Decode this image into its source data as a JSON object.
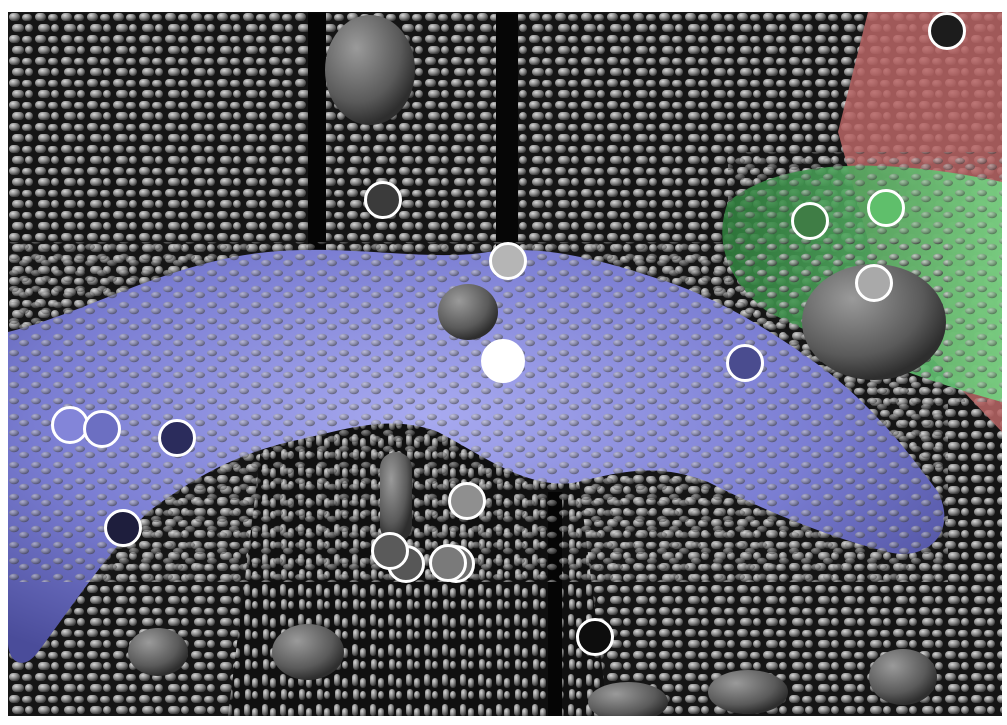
{
  "scene": {
    "description_colors": {
      "background": "#000000",
      "blob": "#7d80d6",
      "green_region": "#4fb865",
      "red_region": "#c96f6f",
      "grains": "#8c8c8c"
    }
  },
  "markers": [
    {
      "name": "marker-dark-topright",
      "color": "#1c1c1c"
    },
    {
      "name": "marker-dark-upper",
      "color": "#3b3b3b"
    },
    {
      "name": "marker-lightgray-center",
      "color": "#b5b5b5"
    },
    {
      "name": "marker-green-left",
      "color": "#3f7d45"
    },
    {
      "name": "marker-green-right",
      "color": "#5fbf6b"
    },
    {
      "name": "marker-lightgray-right",
      "color": "#a9a9a9"
    },
    {
      "name": "marker-white-center",
      "color": "#ffffff"
    },
    {
      "name": "marker-indigo-right",
      "color": "#4a4c8f"
    },
    {
      "name": "marker-periwinkle-a",
      "color": "#8385d9"
    },
    {
      "name": "marker-periwinkle-b",
      "color": "#6c6fc2"
    },
    {
      "name": "marker-navy-left",
      "color": "#2b2c5c"
    },
    {
      "name": "marker-navy-lower",
      "color": "#1e1e3d"
    },
    {
      "name": "marker-gray-mid",
      "color": "#8f8f8f"
    },
    {
      "name": "marker-darkgray-a",
      "color": "#575757"
    },
    {
      "name": "marker-darkgray-b",
      "color": "#5a5a5a"
    },
    {
      "name": "marker-gray-c",
      "color": "#6e6e6e"
    },
    {
      "name": "marker-gray-d",
      "color": "#7a7a7a"
    },
    {
      "name": "marker-black-bottom",
      "color": "#0d0d0d"
    }
  ]
}
